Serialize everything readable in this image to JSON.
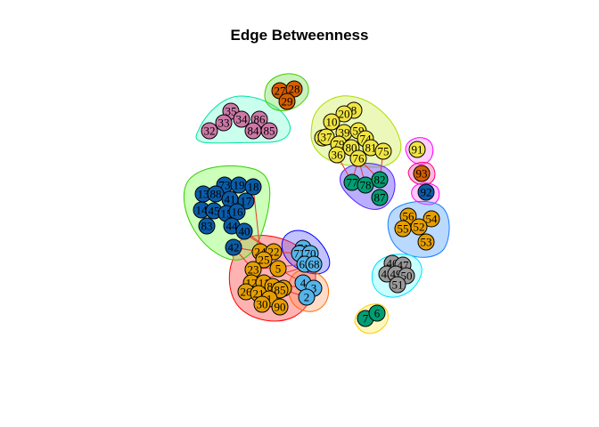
{
  "title": "Edge Betweenness",
  "colors": {
    "orange": "#e69f00",
    "lightblue": "#56b4e9",
    "green": "#009e73",
    "yellow": "#f0e442",
    "navy": "#0a5ca8",
    "red": "#d55e00",
    "pink": "#cc79a7",
    "grey": "#999999"
  },
  "groups": [
    {
      "id": "g-red",
      "fill": "rgba(255,0,0,0.30)",
      "stroke": "#ff0000"
    },
    {
      "id": "g-blue",
      "fill": "rgba(80,80,255,0.35)",
      "stroke": "#0000ff"
    },
    {
      "id": "g-orange",
      "fill": "rgba(255,140,80,0.30)",
      "stroke": "#ff6a00"
    },
    {
      "id": "g-green",
      "fill": "rgba(128,255,80,0.40)",
      "stroke": "#33cc00"
    },
    {
      "id": "g-teal",
      "fill": "rgba(80,255,200,0.30)",
      "stroke": "#00e0a0"
    },
    {
      "id": "g-lime",
      "fill": "rgba(100,220,60,0.35)",
      "stroke": "#44cc00"
    },
    {
      "id": "g-yellowgreen",
      "fill": "rgba(210,240,100,0.45)",
      "stroke": "#aadd00"
    },
    {
      "id": "g-purple",
      "fill": "rgba(130,110,255,0.55)",
      "stroke": "#5522ff"
    },
    {
      "id": "g-magenta1",
      "fill": "rgba(255,120,255,0.35)",
      "stroke": "#ff00ff"
    },
    {
      "id": "g-magenta2",
      "fill": "rgba(255,100,180,0.45)",
      "stroke": "#ff0080"
    },
    {
      "id": "g-magenta3",
      "fill": "rgba(255,120,255,0.40)",
      "stroke": "#ff00ff"
    },
    {
      "id": "g-skyblue",
      "fill": "rgba(80,160,255,0.40)",
      "stroke": "#1a7fff"
    },
    {
      "id": "g-cyan",
      "fill": "rgba(120,255,255,0.40)",
      "stroke": "#00e0ff"
    },
    {
      "id": "g-gold",
      "fill": "rgba(255,240,120,0.50)",
      "stroke": "#ffcc00"
    }
  ],
  "nodes": [
    {
      "label": "27",
      "color": "red"
    },
    {
      "label": "28",
      "color": "red"
    },
    {
      "label": "29",
      "color": "red"
    },
    {
      "label": "35",
      "color": "pink"
    },
    {
      "label": "33",
      "color": "pink"
    },
    {
      "label": "34",
      "color": "pink"
    },
    {
      "label": "86",
      "color": "pink"
    },
    {
      "label": "32",
      "color": "pink"
    },
    {
      "label": "84",
      "color": "pink"
    },
    {
      "label": "85",
      "color": "pink"
    },
    {
      "label": "8",
      "color": "yellow"
    },
    {
      "label": "20",
      "color": "yellow"
    },
    {
      "label": "10",
      "color": "yellow"
    },
    {
      "label": "39",
      "color": "yellow"
    },
    {
      "label": "59",
      "color": "yellow"
    },
    {
      "label": "38",
      "color": "yellow"
    },
    {
      "label": "37",
      "color": "yellow"
    },
    {
      "label": "74",
      "color": "yellow"
    },
    {
      "label": "79",
      "color": "yellow"
    },
    {
      "label": "80",
      "color": "yellow"
    },
    {
      "label": "81",
      "color": "yellow"
    },
    {
      "label": "75",
      "color": "yellow"
    },
    {
      "label": "36",
      "color": "yellow"
    },
    {
      "label": "76",
      "color": "yellow"
    },
    {
      "label": "91",
      "color": "yellow"
    },
    {
      "label": "93",
      "color": "red"
    },
    {
      "label": "92",
      "color": "navy"
    },
    {
      "label": "77",
      "color": "green"
    },
    {
      "label": "78",
      "color": "green"
    },
    {
      "label": "82",
      "color": "green"
    },
    {
      "label": "87",
      "color": "green"
    },
    {
      "label": "73",
      "color": "navy"
    },
    {
      "label": "19",
      "color": "navy"
    },
    {
      "label": "18",
      "color": "navy"
    },
    {
      "label": "13",
      "color": "navy"
    },
    {
      "label": "88",
      "color": "navy"
    },
    {
      "label": "41",
      "color": "navy"
    },
    {
      "label": "17",
      "color": "navy"
    },
    {
      "label": "14",
      "color": "navy"
    },
    {
      "label": "45",
      "color": "navy"
    },
    {
      "label": "15",
      "color": "navy"
    },
    {
      "label": "16",
      "color": "navy"
    },
    {
      "label": "83",
      "color": "navy"
    },
    {
      "label": "44",
      "color": "navy"
    },
    {
      "label": "40",
      "color": "navy"
    },
    {
      "label": "42",
      "color": "navy"
    },
    {
      "label": "56",
      "color": "orange"
    },
    {
      "label": "54",
      "color": "orange"
    },
    {
      "label": "55",
      "color": "orange"
    },
    {
      "label": "52",
      "color": "orange"
    },
    {
      "label": "53",
      "color": "orange"
    },
    {
      "label": "71",
      "color": "lightblue"
    },
    {
      "label": "72",
      "color": "lightblue"
    },
    {
      "label": "70",
      "color": "lightblue"
    },
    {
      "label": "69",
      "color": "lightblue"
    },
    {
      "label": "68",
      "color": "lightblue"
    },
    {
      "label": "24",
      "color": "orange"
    },
    {
      "label": "22",
      "color": "orange"
    },
    {
      "label": "25",
      "color": "orange"
    },
    {
      "label": "23",
      "color": "orange"
    },
    {
      "label": "5",
      "color": "orange"
    },
    {
      "label": "12",
      "color": "orange"
    },
    {
      "label": "11",
      "color": "orange"
    },
    {
      "label": "89",
      "color": "orange"
    },
    {
      "label": "9",
      "color": "orange"
    },
    {
      "label": "26",
      "color": "orange"
    },
    {
      "label": "21",
      "color": "orange"
    },
    {
      "label": "85",
      "color": "orange"
    },
    {
      "label": "1",
      "color": "orange"
    },
    {
      "label": "30",
      "color": "orange"
    },
    {
      "label": "90",
      "color": "orange"
    },
    {
      "label": "4",
      "color": "lightblue"
    },
    {
      "label": "3",
      "color": "lightblue"
    },
    {
      "label": "2",
      "color": "lightblue"
    },
    {
      "label": "46",
      "color": "grey"
    },
    {
      "label": "47",
      "color": "grey"
    },
    {
      "label": "48",
      "color": "grey"
    },
    {
      "label": "49",
      "color": "grey"
    },
    {
      "label": "50",
      "color": "grey"
    },
    {
      "label": "51",
      "color": "grey"
    },
    {
      "label": "7",
      "color": "green"
    },
    {
      "label": "6",
      "color": "green"
    }
  ]
}
